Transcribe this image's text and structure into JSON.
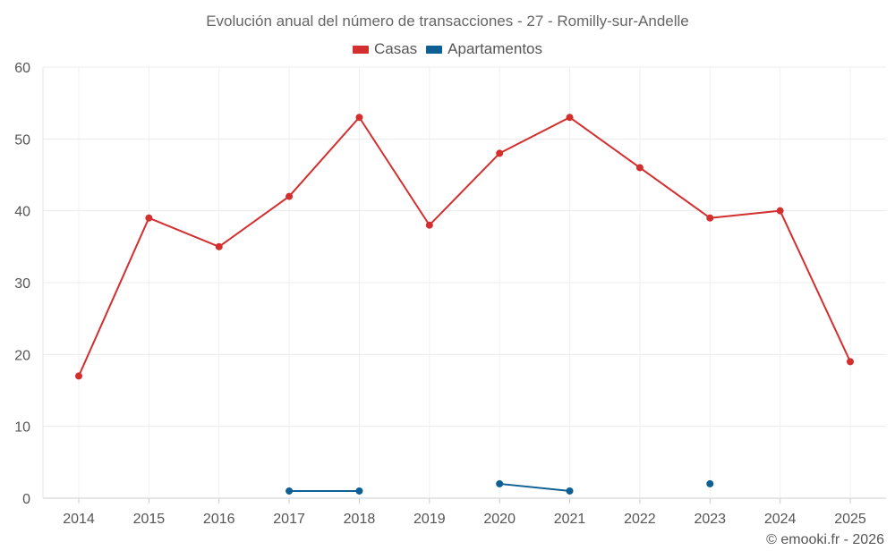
{
  "chart_data": {
    "type": "line",
    "title": "Evolución anual del número de transacciones - 27 - Romilly-sur-Andelle",
    "xlabel": "",
    "ylabel": "",
    "categories": [
      "2014",
      "2015",
      "2016",
      "2017",
      "2018",
      "2019",
      "2020",
      "2021",
      "2022",
      "2023",
      "2024",
      "2025"
    ],
    "ylim": [
      0,
      60
    ],
    "yticks": [
      0,
      10,
      20,
      30,
      40,
      50,
      60
    ],
    "grid": true,
    "legend_position": "top-center",
    "series": [
      {
        "name": "Casas",
        "color": "#d32f2f",
        "values": [
          17,
          39,
          35,
          42,
          53,
          38,
          48,
          53,
          46,
          39,
          40,
          19
        ]
      },
      {
        "name": "Apartamentos",
        "color": "#0d5f94",
        "values": [
          null,
          null,
          null,
          1,
          1,
          null,
          2,
          1,
          null,
          2,
          null,
          null
        ]
      }
    ]
  },
  "credit": "© emooki.fr - 2026"
}
